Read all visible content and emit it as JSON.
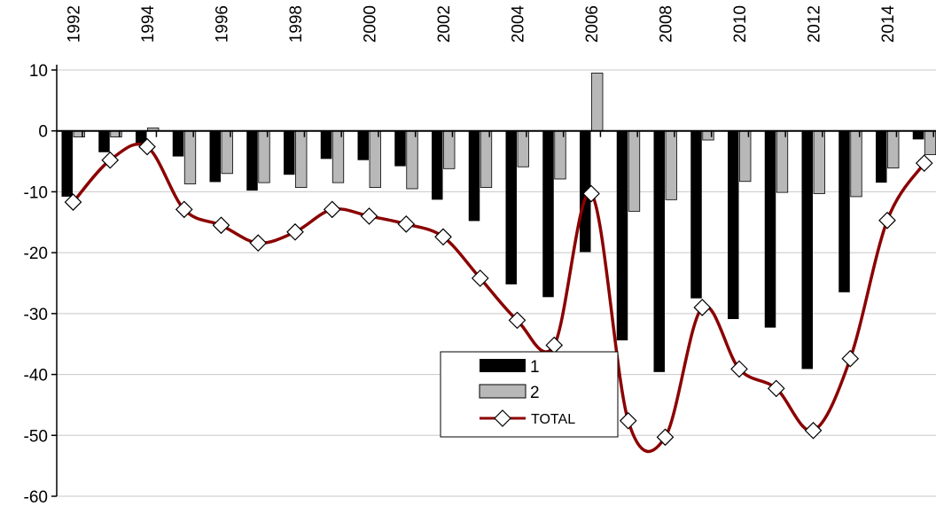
{
  "chart_data": {
    "type": "bar",
    "title": "",
    "xlabel": "",
    "ylabel": "",
    "ylim": [
      -60,
      10
    ],
    "yticks": [
      10,
      0,
      -10,
      -20,
      -30,
      -40,
      -50,
      -60
    ],
    "x_tick_labels": [
      "1992",
      "1994",
      "1996",
      "1998",
      "2000",
      "2002",
      "2004",
      "2006",
      "2008",
      "2010",
      "2012",
      "2014"
    ],
    "x_tick_years": [
      1992,
      1994,
      1996,
      1998,
      2000,
      2002,
      2004,
      2006,
      2008,
      2010,
      2012,
      2014
    ],
    "categories": [
      1992,
      1993,
      1994,
      1995,
      1996,
      1997,
      1998,
      1999,
      2000,
      2001,
      2002,
      2003,
      2004,
      2005,
      2006,
      2007,
      2008,
      2009,
      2010,
      2011,
      2012,
      2013,
      2014,
      2015
    ],
    "series": [
      {
        "name": "1",
        "type": "bar",
        "color": "#000000",
        "values": [
          -10.8,
          -3.5,
          -2.0,
          -4.2,
          -8.4,
          -9.8,
          -7.2,
          -4.6,
          -4.8,
          -5.8,
          -11.3,
          -14.8,
          -25.2,
          -27.3,
          -19.9,
          -34.4,
          -39.6,
          -27.5,
          -30.9,
          -32.3,
          -39.1,
          -26.5,
          -8.5,
          -1.4
        ]
      },
      {
        "name": "2",
        "type": "bar",
        "color": "#b8b8b8",
        "values": [
          -1.0,
          -1.0,
          0.5,
          -8.7,
          -7.0,
          -8.5,
          -9.3,
          -8.5,
          -9.3,
          -9.5,
          -6.2,
          -9.3,
          -5.9,
          -7.9,
          9.5,
          -13.2,
          -11.3,
          -1.5,
          -8.3,
          -10.1,
          -10.3,
          -10.8,
          -6.1,
          -3.9
        ]
      },
      {
        "name": "TOTAL",
        "type": "line",
        "color": "#8b0000",
        "marker": "diamond",
        "values": [
          -11.7,
          -4.8,
          -2.6,
          -12.9,
          -15.5,
          -18.4,
          -16.6,
          -12.9,
          -14.0,
          -15.3,
          -17.4,
          -24.2,
          -31.1,
          -35.2,
          -10.3,
          -47.6,
          -50.3,
          -29.0,
          -39.1,
          -42.3,
          -49.2,
          -37.4,
          -14.7,
          -5.3
        ]
      }
    ],
    "legend": {
      "placement": "center-bottom",
      "entries": [
        "1",
        "2",
        "TOTAL"
      ]
    },
    "grid": {
      "horizontal": true,
      "vertical": false
    },
    "x_axis_position": "top"
  }
}
